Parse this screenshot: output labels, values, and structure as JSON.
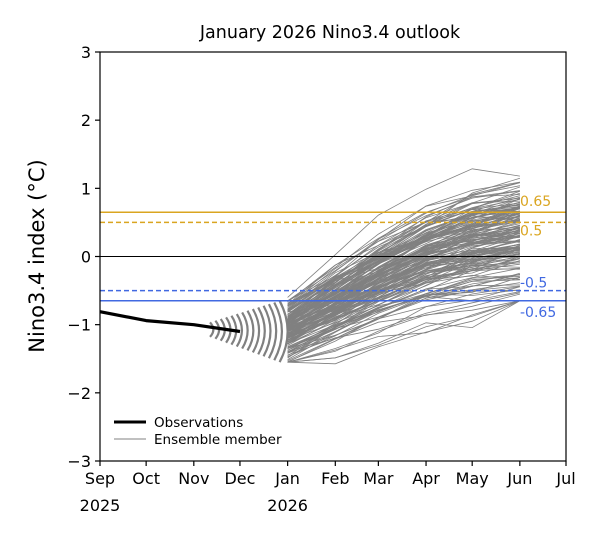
{
  "chart_data": {
    "type": "line",
    "title": "January 2026 Nino3.4 outlook",
    "xlabel": "",
    "ylabel": "Nino3.4 index (°C)",
    "ylim": [
      -3,
      3
    ],
    "yticks": [
      3,
      2,
      1,
      0,
      -1,
      -2,
      -3
    ],
    "ytick_labels": [
      "3",
      "2",
      "1",
      "0",
      "−1",
      "−2",
      "−3"
    ],
    "xlim": [
      "2025-09-01",
      "2026-07-01"
    ],
    "xticks": [
      {
        "date": "2025-09-01",
        "label": "Sep",
        "sublabel": "2025"
      },
      {
        "date": "2025-10-01",
        "label": "Oct",
        "sublabel": ""
      },
      {
        "date": "2025-11-01",
        "label": "Nov",
        "sublabel": ""
      },
      {
        "date": "2025-12-01",
        "label": "Dec",
        "sublabel": ""
      },
      {
        "date": "2026-01-01",
        "label": "Jan",
        "sublabel": "2026"
      },
      {
        "date": "2026-02-01",
        "label": "Feb",
        "sublabel": ""
      },
      {
        "date": "2026-03-01",
        "label": "Mar",
        "sublabel": ""
      },
      {
        "date": "2026-04-01",
        "label": "Apr",
        "sublabel": ""
      },
      {
        "date": "2026-05-01",
        "label": "May",
        "sublabel": ""
      },
      {
        "date": "2026-06-01",
        "label": "Jun",
        "sublabel": ""
      },
      {
        "date": "2026-07-01",
        "label": "Jul",
        "sublabel": ""
      }
    ],
    "grid": false,
    "legend_position": "lower-left",
    "series": [
      {
        "name": "Observations",
        "color": "#000000",
        "x": [
          "2025-09-01",
          "2025-10-01",
          "2025-11-01",
          "2025-12-01"
        ],
        "values": [
          -0.81,
          -0.94,
          -1.0,
          -1.1
        ]
      }
    ],
    "ensemble": {
      "name": "Ensemble member",
      "color": "#808080",
      "member_count": 180,
      "x": [
        "2026-01-01",
        "2026-02-01",
        "2026-03-01",
        "2026-04-01",
        "2026-05-01",
        "2026-06-01"
      ],
      "start_range": [
        -1.55,
        -0.6
      ],
      "end_range": [
        -0.65,
        1.18
      ],
      "mean_path": [
        -1.1,
        -0.72,
        -0.38,
        -0.05,
        0.15,
        0.28
      ],
      "spread_path": [
        0.22,
        0.25,
        0.3,
        0.33,
        0.36,
        0.38
      ],
      "arc_fan": {
        "from": "2025-11-10",
        "to": "2026-01-01",
        "arc_count": 14
      }
    },
    "reference_lines": [
      {
        "value": 0.65,
        "label": "0.65",
        "color": "#DAA520",
        "style": "solid"
      },
      {
        "value": 0.5,
        "label": "0.5",
        "color": "#DAA520",
        "style": "dashed"
      },
      {
        "value": 0,
        "label": "",
        "color": "#000000",
        "style": "solid"
      },
      {
        "value": -0.5,
        "label": "-0.5",
        "color": "#4169E1",
        "style": "dashed"
      },
      {
        "value": -0.65,
        "label": "-0.65",
        "color": "#4169E1",
        "style": "solid"
      }
    ],
    "legend": [
      {
        "label": "Observations",
        "color": "#000000",
        "weight": "thick"
      },
      {
        "label": "Ensemble member",
        "color": "#808080",
        "weight": "thin"
      }
    ]
  }
}
